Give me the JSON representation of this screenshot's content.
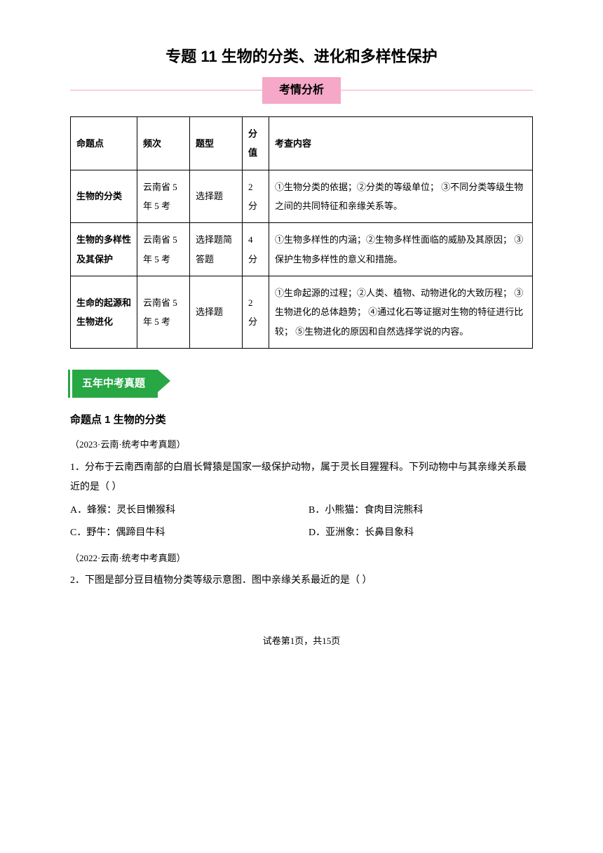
{
  "title": "专题 11  生物的分类、进化和多样性保护",
  "banner": "考情分析",
  "colors": {
    "banner_bg": "#f5a8c8",
    "banner_line": "#f5a8c8",
    "section_bg": "#28a745",
    "section_text": "#ffffff",
    "border": "#000000",
    "text": "#000000",
    "background": "#ffffff"
  },
  "table": {
    "headers": {
      "topic": "命题点",
      "freq": "频次",
      "type": "题型",
      "score": "分值",
      "content": "考查内容"
    },
    "rows": [
      {
        "topic": "生物的分类",
        "freq": "云南省 5 年 5 考",
        "type": "选择题",
        "score": "2 分",
        "content": "①生物分类的依据；②分类的等级单位；\n③不同分类等级生物之间的共同特征和亲缘关系等。"
      },
      {
        "topic": "生物的多样性及其保护",
        "freq": "云南省 5 年 5 考",
        "type": "选择题简答题",
        "score": "4 分",
        "content": "①生物多样性的内涵；②生物多样性面临的威胁及其原因；\n③保护生物多样性的意义和措施。"
      },
      {
        "topic": "生命的起源和生物进化",
        "freq": "云南省 5 年 5 考",
        "type": "选择题",
        "score": "2 分",
        "content": "①生命起源的过程；②人类、植物、动物进化的大致历程；\n③生物进化的总体趋势；\n④通过化石等证据对生物的特征进行比较；\n⑤生物进化的原因和自然选择学说的内容。"
      }
    ]
  },
  "section_label": "五年中考真题",
  "subheading": "命题点 1   生物的分类",
  "q1": {
    "source": "（2023·云南·统考中考真题）",
    "text": "1．分布于云南西南部的白眉长臂猿是国家一级保护动物，属于灵长目猩猩科。下列动物中与其亲缘关系最近的是（     ）",
    "options": {
      "A": "A．蜂猴：灵长目懒猴科",
      "B": "B．小熊猫：食肉目浣熊科",
      "C": "C．野牛：偶蹄目牛科",
      "D": "D．亚洲象：长鼻目象科"
    }
  },
  "q2": {
    "source": "（2022·云南·统考中考真题）",
    "text": "2．下图是部分豆目植物分类等级示意图．图中亲缘关系最近的是（     ）"
  },
  "footer": "试卷第1页，共15页"
}
